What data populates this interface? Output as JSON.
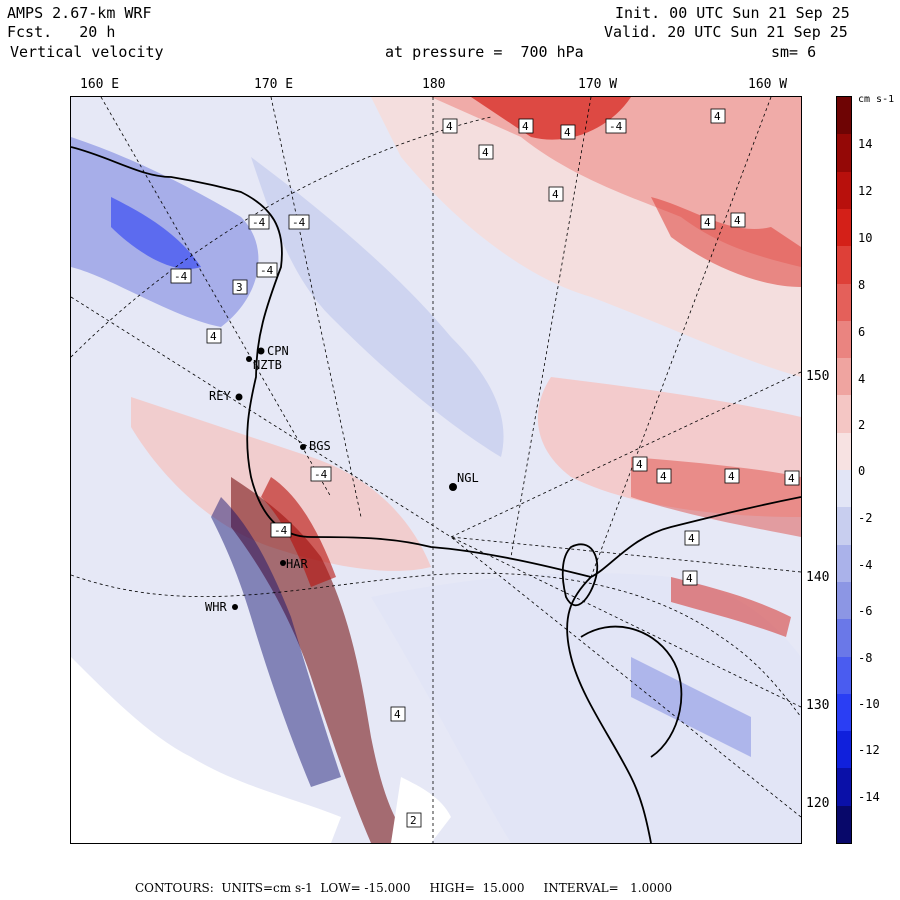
{
  "header": {
    "model": "AMPS 2.67-km WRF",
    "forecast_label": "Fcst.",
    "forecast_value": "20 h",
    "field": "Vertical velocity",
    "init": "Init. 00 UTC Sun 21 Sep 25",
    "valid": "Valid. 20 UTC Sun 21 Sep 25",
    "level": "at pressure =  700 hPa",
    "smoothing": "sm= 6"
  },
  "longitude_labels_top": [
    "160 E",
    "170 E",
    "180",
    "170 W",
    "160 W"
  ],
  "longitude_labels_right": [
    "150 W",
    "140 W",
    "130 W",
    "120 W"
  ],
  "colorbar": {
    "unit": "cm s-1",
    "labels": [
      "14",
      "12",
      "10",
      "8",
      "6",
      "4",
      "2",
      "0",
      "-2",
      "-4",
      "-6",
      "-8",
      "-10",
      "-12",
      "-14"
    ],
    "colors": [
      "#08086a",
      "#0a10a8",
      "#1020dc",
      "#2a3ef4",
      "#4a5cf0",
      "#6a78e8",
      "#8c96e4",
      "#aab2ea",
      "#c8ceef",
      "#e2e5f6",
      "#f7e2e2",
      "#f4c6c4",
      "#efa4a0",
      "#ea8480",
      "#e4605a",
      "#de4038",
      "#d42018",
      "#b8100c",
      "#940806",
      "#6e0404"
    ]
  },
  "stations": [
    {
      "id": "CPN",
      "label": "CPN"
    },
    {
      "id": "NZTB",
      "label": "NZTB"
    },
    {
      "id": "REY",
      "label": "REY"
    },
    {
      "id": "BGS",
      "label": "BGS"
    },
    {
      "id": "NGL",
      "label": "NGL"
    },
    {
      "id": "HAR",
      "label": "HAR"
    },
    {
      "id": "WHR",
      "label": "WHR"
    }
  ],
  "contour_box_labels": [
    "4",
    "4",
    "4",
    "4",
    "-4",
    "4",
    "4",
    "4",
    "4",
    "-4",
    "-4",
    "-4",
    "3",
    "-4",
    "4",
    "4",
    "4",
    "4",
    "4",
    "4",
    "-4",
    "-4",
    "4",
    "4",
    "2"
  ],
  "footer": {
    "text": "CONTOURS:  UNITS=cm s-1  LOW= -15.000     HIGH=  15.000     INTERVAL=   1.0000"
  },
  "map_fields": {
    "positive_region": "Red areas: ascending motion (upward vertical velocity)",
    "negative_region": "Blue areas: descending motion",
    "coastline": "Coastline and ice-shelf edge in black"
  }
}
